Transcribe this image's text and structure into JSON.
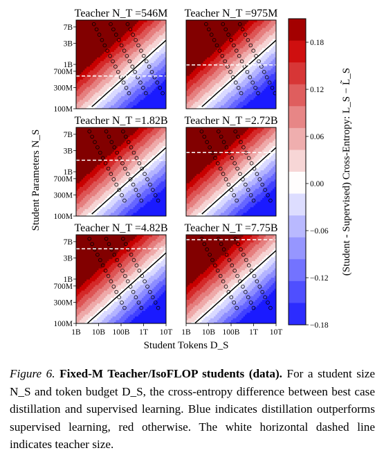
{
  "chart_data": {
    "type": "heatmap",
    "panel_titles": [
      "Teacher N_T =546M",
      "Teacher N_T =975M",
      "Teacher N_T =1.82B",
      "Teacher N_T =2.72B",
      "Teacher N_T =4.82B",
      "Teacher N_T =7.75B"
    ],
    "teacher_params": [
      546000000.0,
      975000000.0,
      1820000000.0,
      2720000000.0,
      4820000000.0,
      7750000000.0
    ],
    "xlabel": "Student Tokens D_S",
    "ylabel": "Student Parameters N_S",
    "x_scale": "log",
    "y_scale": "log",
    "xlim": [
      1000000000.0,
      10000000000000.0
    ],
    "ylim": [
      100000000.0,
      10000000000.0
    ],
    "x_ticks": [
      1000000000.0,
      10000000000.0,
      100000000000.0,
      1000000000000.0,
      10000000000000.0
    ],
    "x_tick_labels": [
      "1B",
      "10B",
      "100B",
      "1T",
      "10T"
    ],
    "y_ticks": [
      100000000.0,
      300000000.0,
      700000000.0,
      1000000000.0,
      3000000000.0,
      7000000000.0
    ],
    "y_tick_labels": [
      "100M",
      "300M",
      "700M",
      "1B",
      "3B",
      "7B"
    ],
    "colorbar_label": "(Student - Supervised) Cross-Entropy: L_S − L̃_S",
    "colorbar_ticks": [
      0.18,
      0.12,
      0.06,
      0.0,
      -0.06,
      -0.12,
      -0.18
    ],
    "colorbar_tick_labels": [
      "0.18",
      "0.12",
      "0.06",
      "0.00",
      "−0.06",
      "−0.12",
      "−0.18"
    ],
    "clim": [
      -0.18,
      0.21
    ],
    "colormap": "bwr",
    "colors": {
      "negative": "#1a1aff",
      "zero": "#ffffff",
      "positive": "#cc0000",
      "teacher_line": "#ffffff",
      "contour": "#000000"
    },
    "isoflop_lines_per_panel": [
      3,
      3,
      3,
      3,
      3,
      3
    ],
    "teacher_line": "dashed-white",
    "zero_contour": "solid-black"
  },
  "caption": {
    "label": "Figure 6.",
    "title": "Fixed-M Teacher/IsoFLOP students (data).",
    "body": "For a student size N_S and token budget D_S, the cross-entropy difference between best case distillation and supervised learning. Blue indicates distillation outperforms supervised learning, red otherwise. The white horizontal dashed line indicates teacher size."
  }
}
